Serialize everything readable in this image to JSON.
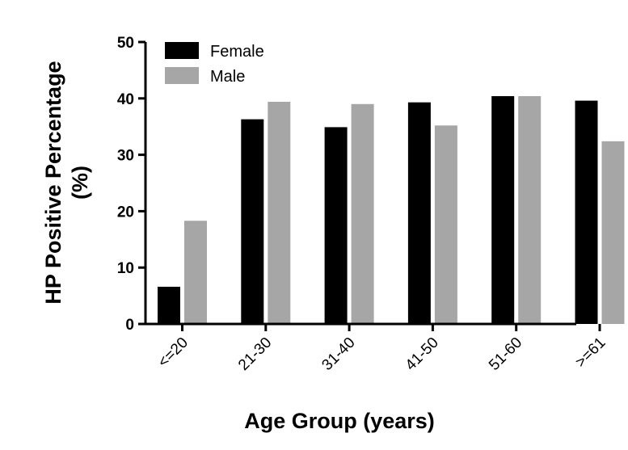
{
  "chart_data": {
    "type": "bar",
    "title": "",
    "xlabel": "Age Group (years)",
    "ylabel_lines": [
      "HP Positive Percentage",
      "(%)"
    ],
    "categories": [
      "<=20",
      "21-30",
      "31-40",
      "41-50",
      "51-60",
      ">=61"
    ],
    "series": [
      {
        "name": "Female",
        "color": "#000000",
        "values": [
          6.6,
          36.3,
          34.9,
          39.3,
          40.4,
          39.6
        ]
      },
      {
        "name": "Male",
        "color": "#a6a6a6",
        "values": [
          18.3,
          39.4,
          39.0,
          35.2,
          40.4,
          32.4
        ]
      }
    ],
    "ylim": [
      0,
      50
    ],
    "yticks": [
      0,
      10,
      20,
      30,
      40,
      50
    ],
    "grid": false,
    "legend_position": "top-left"
  }
}
